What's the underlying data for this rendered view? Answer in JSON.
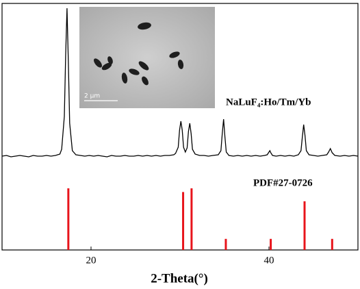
{
  "chart_data": [
    {
      "type": "line",
      "xlim": [
        10,
        50
      ],
      "ylim": [
        -10,
        225
      ],
      "x": [
        10,
        10.5,
        11,
        11.5,
        12,
        12.5,
        13,
        13.5,
        14,
        14.5,
        15,
        15.5,
        16,
        16.5,
        16.7,
        17,
        17.15,
        17.3,
        17.45,
        17.6,
        17.9,
        18.3,
        18.8,
        19.3,
        19.8,
        20.3,
        20.8,
        21.3,
        21.8,
        22.3,
        22.8,
        23.3,
        23.8,
        24.3,
        24.8,
        25.3,
        25.8,
        26.3,
        26.8,
        27.3,
        27.8,
        28.3,
        28.8,
        29.3,
        29.5,
        29.8,
        29.95,
        30.1,
        30.25,
        30.4,
        30.6,
        30.8,
        30.95,
        31.1,
        31.25,
        31.4,
        31.7,
        32.2,
        32.7,
        33.2,
        33.7,
        34.3,
        34.6,
        34.75,
        34.9,
        35.05,
        35.2,
        35.5,
        36,
        36.5,
        37,
        37.5,
        38,
        38.5,
        39,
        39.5,
        39.8,
        40,
        40.1,
        40.2,
        40.4,
        40.8,
        41.3,
        41.8,
        42.3,
        42.8,
        43.3,
        43.6,
        43.75,
        43.9,
        44.05,
        44.2,
        44.5,
        45,
        45.5,
        46,
        46.5,
        46.7,
        46.9,
        47.1,
        47.4,
        48,
        48.5,
        49,
        49.5,
        50
      ],
      "series": [
        {
          "name": "NaLuF₄:Ho/Tm/Yb",
          "color": "#000000",
          "values": [
            2,
            3,
            1,
            2,
            3,
            2,
            1,
            3,
            2,
            2,
            3,
            2,
            3,
            5,
            12,
            60,
            150,
            218,
            140,
            50,
            10,
            4,
            3,
            2,
            3,
            2,
            3,
            2,
            1,
            3,
            2,
            2,
            3,
            2,
            2,
            3,
            2,
            3,
            2,
            3,
            2,
            3,
            3,
            4,
            6,
            15,
            40,
            53,
            40,
            15,
            8,
            14,
            38,
            50,
            35,
            12,
            5,
            3,
            3,
            2,
            3,
            4,
            10,
            35,
            56,
            30,
            8,
            3,
            2,
            3,
            2,
            3,
            2,
            3,
            2,
            3,
            4,
            8,
            10,
            7,
            3,
            2,
            3,
            2,
            3,
            2,
            4,
            10,
            30,
            48,
            32,
            10,
            4,
            3,
            2,
            3,
            4,
            8,
            13,
            7,
            3,
            2,
            3,
            2,
            3,
            2
          ]
        }
      ],
      "annotations": [
        "2 μm"
      ]
    },
    {
      "type": "stick",
      "xlim": [
        10,
        50
      ],
      "ylim": [
        0,
        130
      ],
      "xticks": [
        20,
        40
      ],
      "x_label": "2-Theta(°)",
      "x": [
        17.45,
        30.35,
        31.3,
        35.15,
        40.2,
        44.0,
        47.1
      ],
      "series": [
        {
          "name": "PDF#27-0726",
          "color": "#e8141b",
          "values": [
            100,
            94,
            100,
            18,
            18,
            79,
            18
          ]
        }
      ]
    }
  ]
}
